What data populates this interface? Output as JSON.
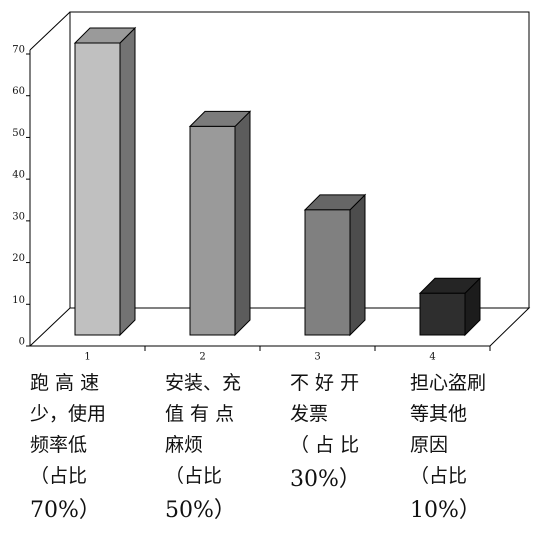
{
  "chart_data": {
    "type": "bar3d",
    "categories": [
      "1",
      "2",
      "3",
      "4"
    ],
    "values": [
      70,
      50,
      30,
      10
    ],
    "colors": [
      "#c0c0c0",
      "#9a9a9a",
      "#808080",
      "#2e2e2e"
    ],
    "ylim": [
      0,
      70
    ],
    "yticks": [
      0,
      10,
      20,
      30,
      40,
      50,
      60,
      70
    ],
    "annotations": [
      [
        "跑 高 速",
        "少，使用",
        "频率低",
        "（占比",
        "70%）"
      ],
      [
        "安装、充",
        "值 有 点",
        "麻烦",
        "（占比",
        "50%）"
      ],
      [
        "不 好 开",
        "发票",
        "（ 占 比",
        "30%）"
      ],
      [
        "担心盗刷",
        "等其他",
        "原因",
        "（占比",
        "10%）"
      ]
    ]
  }
}
